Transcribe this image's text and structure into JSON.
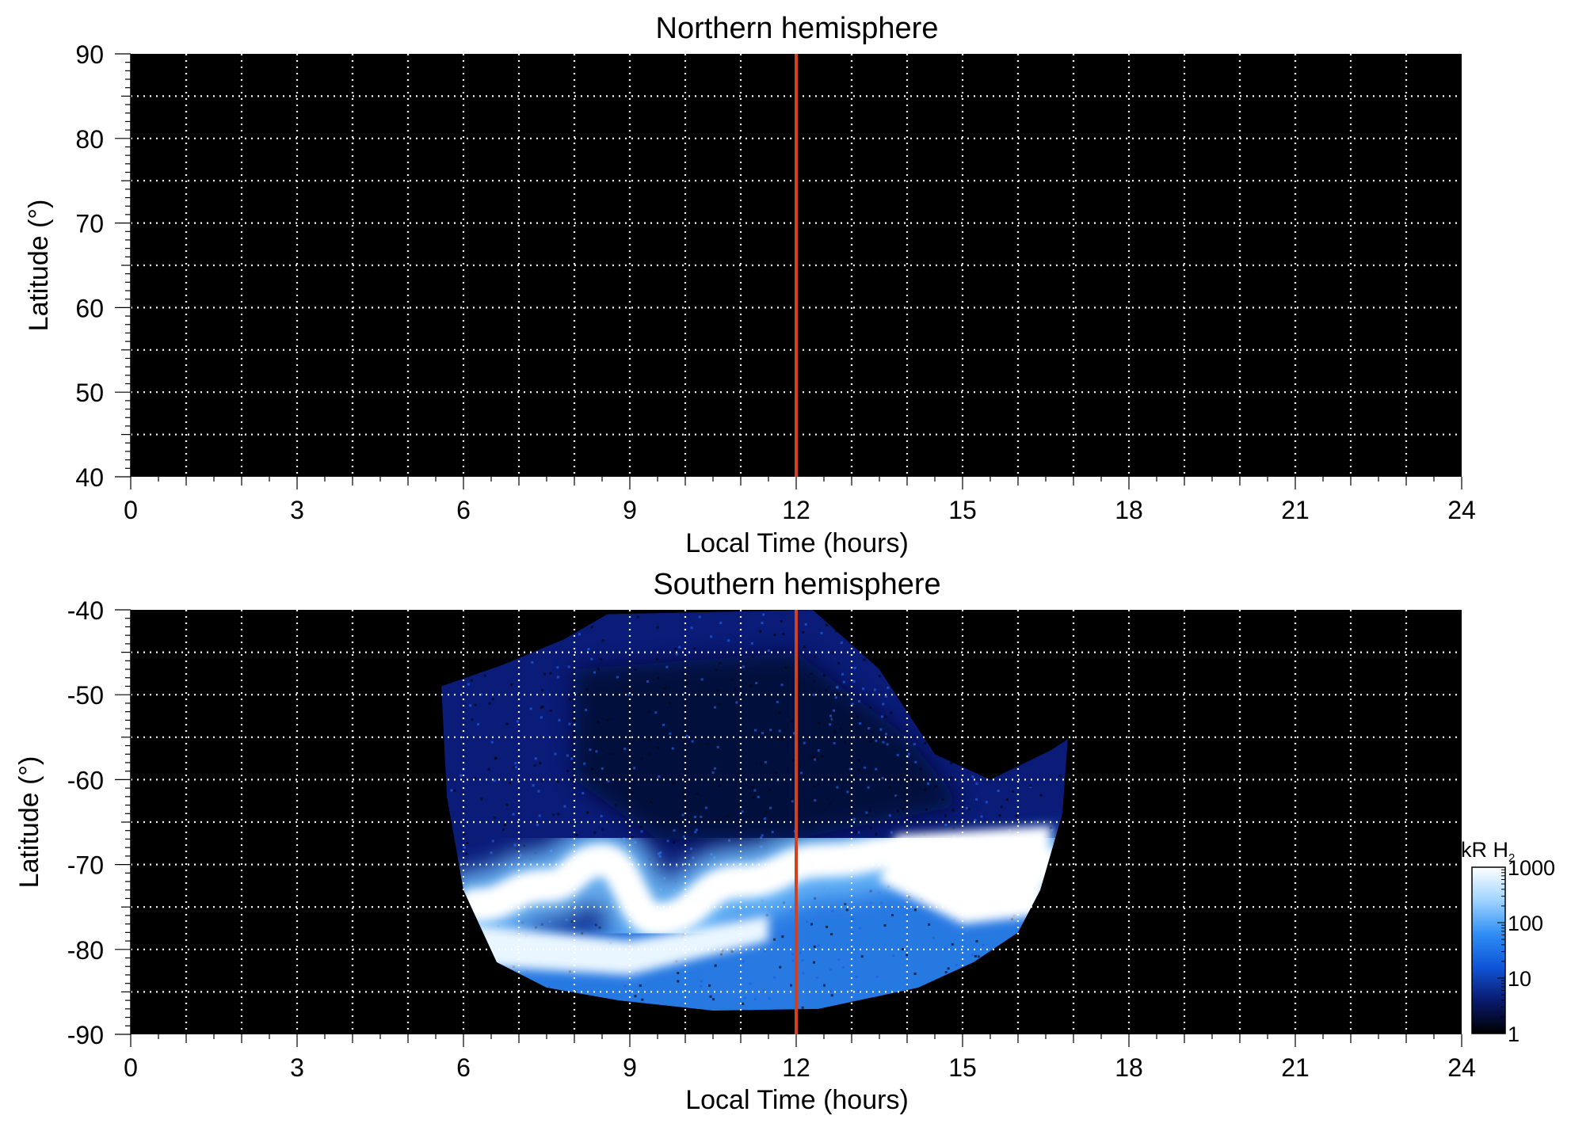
{
  "colors": {
    "background": "#000000",
    "grid": "#ffffff",
    "noon_line": "#d2401e",
    "colorscale": [
      "#000000",
      "#0a1a6e",
      "#0f55d8",
      "#2f8ff5",
      "#9fd3ff",
      "#ffffff"
    ]
  },
  "chart_data": [
    {
      "type": "heatmap",
      "title": "Northern hemisphere",
      "xlabel": "Local Time (hours)",
      "ylabel": "Latitude (°)",
      "xlim": [
        0,
        24
      ],
      "ylim": [
        40,
        90
      ],
      "xticks": [
        "0",
        "3",
        "6",
        "9",
        "12",
        "15",
        "18",
        "21",
        "24"
      ],
      "yticks": [
        "40",
        "50",
        "60",
        "70",
        "80",
        "90"
      ],
      "grid": true,
      "vertical_marker_x": 12,
      "emission": []
    },
    {
      "type": "heatmap",
      "title": "Southern hemisphere",
      "xlabel": "Local Time (hours)",
      "ylabel": "Latitude (°)",
      "xlim": [
        0,
        24
      ],
      "ylim": [
        -90,
        -40
      ],
      "xticks": [
        "0",
        "3",
        "6",
        "9",
        "12",
        "15",
        "18",
        "21",
        "24"
      ],
      "yticks": [
        "-90",
        "-80",
        "-70",
        "-60",
        "-50",
        "-40"
      ],
      "grid": true,
      "vertical_marker_x": 12,
      "coverage_region_boundary": [
        [
          5.6,
          -49
        ],
        [
          6.7,
          -46.5
        ],
        [
          7.8,
          -43.5
        ],
        [
          8.6,
          -40.5
        ],
        [
          12.3,
          -40
        ],
        [
          13.5,
          -47
        ],
        [
          14.5,
          -57
        ],
        [
          15.5,
          -60
        ],
        [
          16.6,
          -56.5
        ],
        [
          16.9,
          -55.2
        ],
        [
          16.8,
          -64
        ],
        [
          16.4,
          -73
        ],
        [
          16.0,
          -78
        ],
        [
          15.2,
          -81.5
        ],
        [
          14.2,
          -84.5
        ],
        [
          12.4,
          -87
        ],
        [
          10.5,
          -87.2
        ],
        [
          8.8,
          -86
        ],
        [
          7.5,
          -84.5
        ],
        [
          6.6,
          -81.5
        ],
        [
          6.0,
          -73
        ],
        [
          5.7,
          -62
        ]
      ],
      "auroral_oval": [
        {
          "lt": 6.2,
          "lat": -74.8,
          "kR": 400
        },
        {
          "lt": 7.5,
          "lat": -72.5,
          "kR": 1000
        },
        {
          "lt": 8.5,
          "lat": -69.5,
          "kR": 700
        },
        {
          "lt": 9.5,
          "lat": -76.5,
          "kR": 1000
        },
        {
          "lt": 11.0,
          "lat": -72.0,
          "kR": 1000
        },
        {
          "lt": 12.5,
          "lat": -69.5,
          "kR": 1000
        },
        {
          "lt": 14.0,
          "lat": -68.5,
          "kR": 1000
        },
        {
          "lt": 15.5,
          "lat": -69.5,
          "kR": 1000
        },
        {
          "lt": 16.5,
          "lat": -70.0,
          "kR": 800
        }
      ],
      "colorbar": {
        "label": "kR H",
        "label_subscript": "2",
        "scale": "log",
        "range": [
          1,
          1000
        ],
        "ticks": [
          "1",
          "10",
          "100",
          "1000"
        ]
      }
    }
  ]
}
